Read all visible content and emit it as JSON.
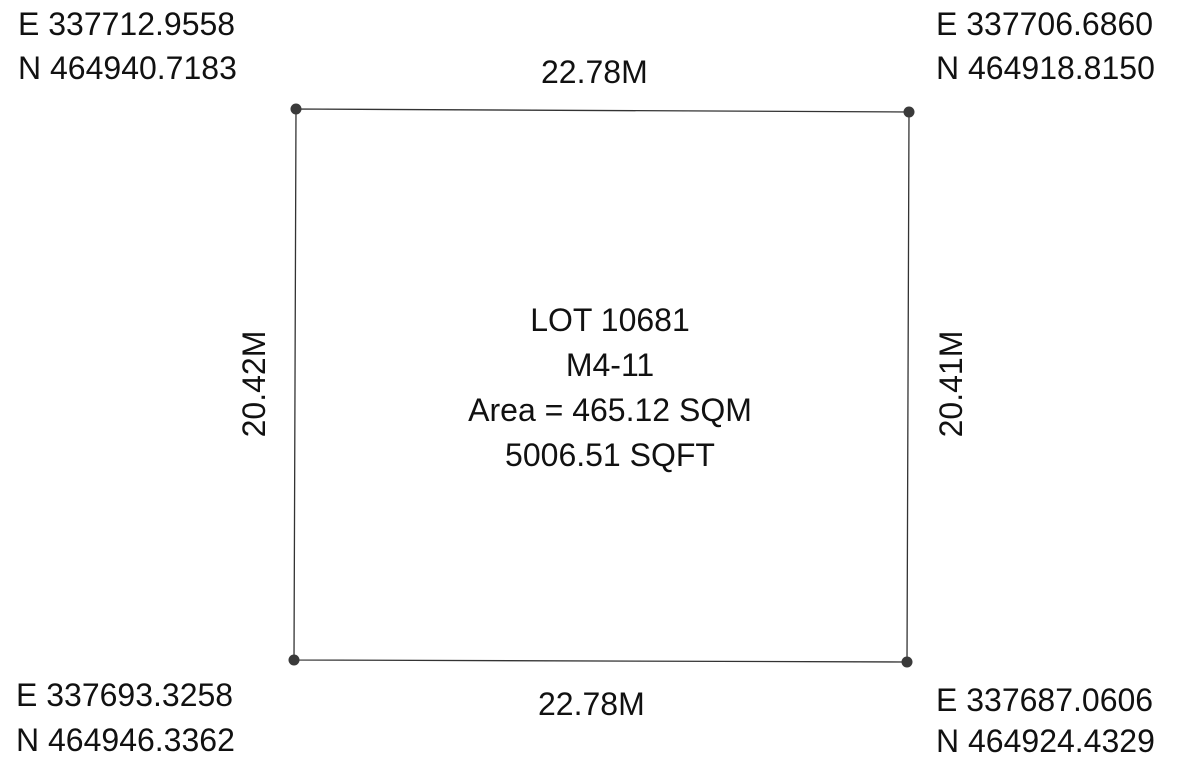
{
  "lot": {
    "name": "LOT 10681",
    "sheet": "M4-11",
    "area_sqm": "Area = 465.12 SQM",
    "area_sqft": "5006.51 SQFT"
  },
  "boundaries": {
    "top": "22.78M",
    "bottom": "22.78M",
    "left": "20.42M",
    "right": "20.41M"
  },
  "corners": {
    "top_left": {
      "e": "E 337712.9558",
      "n": "N 464940.7183"
    },
    "top_right": {
      "e": "E 337706.6860",
      "n": "N 464918.8150"
    },
    "bottom_left": {
      "e": "E 337693.3258",
      "n": "N 464946.3362"
    },
    "bottom_right": {
      "e": "E 337687.0606",
      "n": "N 464924.4329"
    }
  },
  "colors": {
    "line": "#333333",
    "marker": "#3a3a3a",
    "text": "#111111"
  }
}
